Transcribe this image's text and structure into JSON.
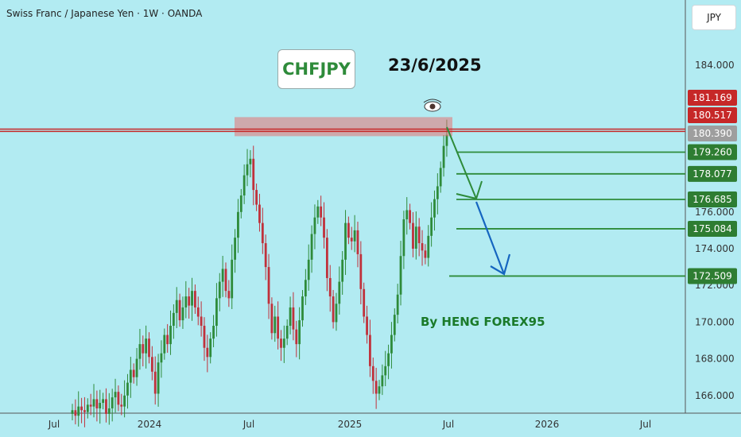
{
  "header": {
    "title": "Swiss Franc / Japanese Yen · 1W · OANDA",
    "currency_button": "JPY"
  },
  "annotations": {
    "symbol": "CHFJPY",
    "date": "23/6/2025",
    "author": "By HENG FOREX95"
  },
  "colors": {
    "background": "#b2ebf2",
    "up": "#2e8b3a",
    "down": "#c0313b",
    "resistance": "#c62828",
    "target": "#2e8b3a",
    "arrow_green": "#2e8b3a",
    "arrow_blue": "#1565c0"
  },
  "chart_data": {
    "type": "candlestick",
    "title": "Swiss Franc / Japanese Yen · 1W · OANDA",
    "y_ticks": [
      "184.000",
      "176.000",
      "174.000",
      "172.000",
      "170.000",
      "168.000",
      "166.000"
    ],
    "x_ticks": [
      "Jul",
      "2024",
      "Jul",
      "2025",
      "Jul",
      "2026",
      "Jul"
    ],
    "ylim": [
      165,
      186
    ],
    "grid": false,
    "resistance_zone": [
      180.39,
      181.169
    ],
    "resistance_lines": [
      180.517,
      180.39
    ],
    "price_labels": [
      {
        "value": 181.169,
        "label": "181.169",
        "kind": "resistance"
      },
      {
        "value": 180.517,
        "label": "180.517",
        "kind": "resistance"
      },
      {
        "value": 180.39,
        "label": "180.390",
        "kind": "current"
      },
      {
        "value": 179.26,
        "label": "179.260",
        "kind": "target"
      },
      {
        "value": 178.077,
        "label": "178.077",
        "kind": "target"
      },
      {
        "value": 176.685,
        "label": "176.685",
        "kind": "target"
      },
      {
        "value": 175.084,
        "label": "175.084",
        "kind": "target"
      },
      {
        "value": 172.509,
        "label": "172.509",
        "kind": "target"
      }
    ],
    "target_levels": [
      179.26,
      178.077,
      176.685,
      175.084,
      172.509
    ],
    "candles_close": [
      165.2,
      164.9,
      165.4,
      165.2,
      165.1,
      165.5,
      165.4,
      165.8,
      165.3,
      165.6,
      165.8,
      165.0,
      165.3,
      165.9,
      166.2,
      165.5,
      165.4,
      166.0,
      166.7,
      167.4,
      167.0,
      168.0,
      168.8,
      168.3,
      169.1,
      168.1,
      167.3,
      166.1,
      167.8,
      168.3,
      169.3,
      168.8,
      169.8,
      170.5,
      171.2,
      170.1,
      170.8,
      171.4,
      170.9,
      171.7,
      170.8,
      170.3,
      169.8,
      168.6,
      168.1,
      169.1,
      169.8,
      171.3,
      172.2,
      172.9,
      171.7,
      171.3,
      173.4,
      174.6,
      176.0,
      176.9,
      178.0,
      178.6,
      178.9,
      177.2,
      176.4,
      175.4,
      174.3,
      173.0,
      171.0,
      169.4,
      170.3,
      169.1,
      168.6,
      169.1,
      169.8,
      170.8,
      169.6,
      168.8,
      170.1,
      171.4,
      172.3,
      173.4,
      174.8,
      175.7,
      176.3,
      175.7,
      174.6,
      172.4,
      171.4,
      170.0,
      171.0,
      172.2,
      173.4,
      175.4,
      174.6,
      174.4,
      175.0,
      173.7,
      171.8,
      170.3,
      169.3,
      167.6,
      166.8,
      166.1,
      166.5,
      167.1,
      167.6,
      168.3,
      169.3,
      170.4,
      171.5,
      173.6,
      175.6,
      176.1,
      175.4,
      174.0,
      175.2,
      174.3,
      173.9,
      173.5,
      174.7,
      175.7,
      176.7,
      177.4,
      178.4,
      179.6,
      180.2
    ]
  }
}
